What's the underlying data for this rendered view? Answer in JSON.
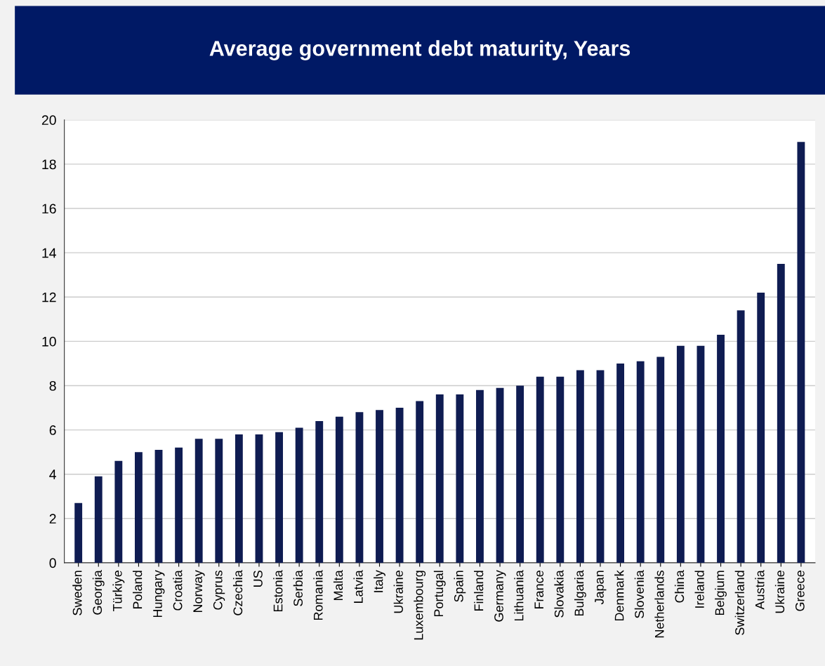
{
  "chart_data": {
    "type": "bar",
    "title": "Average government debt maturity, Years",
    "categories": [
      "Sweden",
      "Georgia",
      "Türkiye",
      "Poland",
      "Hungary",
      "Croatia",
      "Norway",
      "Cyprus",
      "Czechia",
      "US",
      "Estonia",
      "Serbia",
      "Romania",
      "Malta",
      "Latvia",
      "Italy",
      "Ukraine",
      "Luxembourg",
      "Portugal",
      "Spain",
      "Finland",
      "Germany",
      "Lithuania",
      "France",
      "Slovakia",
      "Bulgaria",
      "Japan",
      "Denmark",
      "Slovenia",
      "Netherlands",
      "China",
      "Ireland",
      "Belgium",
      "Switzerland",
      "Austria",
      "Ukraine",
      "Greece"
    ],
    "values": [
      2.7,
      3.9,
      4.6,
      5.0,
      5.1,
      5.2,
      5.6,
      5.6,
      5.8,
      5.8,
      5.9,
      6.1,
      6.4,
      6.6,
      6.8,
      6.9,
      7.0,
      7.3,
      7.6,
      7.6,
      7.8,
      7.9,
      8.0,
      8.4,
      8.4,
      8.7,
      8.7,
      9.0,
      9.1,
      9.3,
      9.8,
      9.8,
      10.3,
      11.4,
      12.2,
      13.5,
      19.0
    ],
    "color": "#0f1c52",
    "ylim": [
      0,
      20
    ],
    "yticks": [
      0,
      2,
      4,
      6,
      8,
      10,
      12,
      14,
      16,
      18,
      20
    ],
    "grid": "y"
  }
}
